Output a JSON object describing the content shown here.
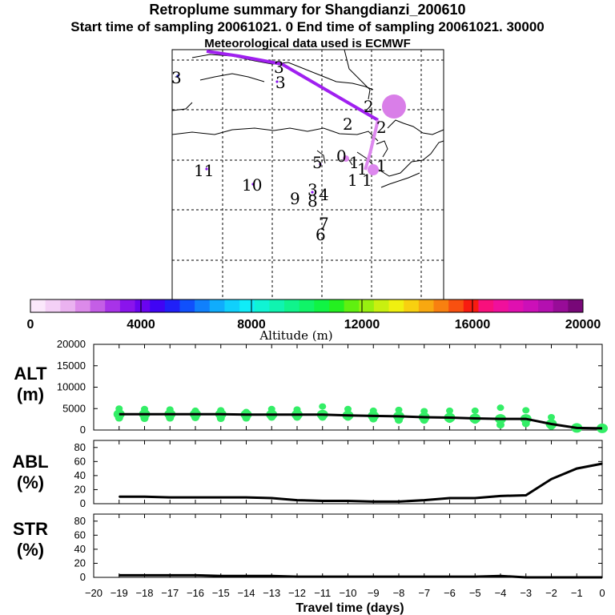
{
  "header": {
    "title": "Retroplume summary for Shangdianzi_200610",
    "subtitle": "Start time of sampling 20061021.     0     End time of sampling 20061021. 30000",
    "met_line": "Meteorological data used is ECMWF"
  },
  "colors": {
    "trajectory": "#a020f0",
    "trajectory_light": "#dd88ee",
    "blob": "#d97ee8",
    "alt_dots": "#33ee66",
    "line": "#000000"
  },
  "map": {
    "labels": [
      "3",
      "3",
      "3",
      "2",
      "2",
      "2",
      "1",
      "1",
      "1",
      "0",
      "5",
      "3",
      "4",
      "9",
      "8",
      "7",
      "6",
      "11",
      "10",
      "1",
      "1"
    ]
  },
  "colorbar": {
    "title": "Altitude (m)",
    "tick_labels": [
      "0",
      "4000",
      "8000",
      "12000",
      "16000",
      "20000"
    ],
    "colors": [
      "#fbe8fb",
      "#f4d0f6",
      "#eab2f0",
      "#dc8aea",
      "#c45ee6",
      "#a833e8",
      "#8a14ec",
      "#6a04f0",
      "#4004f4",
      "#2020f8",
      "#1050fc",
      "#1080fc",
      "#10acfc",
      "#10d0fc",
      "#10ecf8",
      "#10f4d4",
      "#10f4b0",
      "#10f48c",
      "#10f468",
      "#10f444",
      "#24f020",
      "#60f010",
      "#98f010",
      "#c8f010",
      "#f0f010",
      "#f8d010",
      "#f8a810",
      "#f88010",
      "#f85010",
      "#f81c10",
      "#f8107c",
      "#f0109c",
      "#e010b0",
      "#cc10b8",
      "#b410b0",
      "#980c98",
      "#780878"
    ]
  },
  "chart_data": [
    {
      "type": "scatter",
      "panel_label": [
        "ALT",
        "(m)"
      ],
      "ylim": [
        0,
        20000
      ],
      "yticks": [
        "0",
        "5000",
        "10000",
        "15000",
        "20000"
      ],
      "x": [
        -19,
        -18,
        -17,
        -16,
        -15,
        -14,
        -13,
        -12,
        -11,
        -10,
        -9,
        -8,
        -7,
        -6,
        -5,
        -4,
        -3,
        -2,
        -1,
        0
      ],
      "series": [
        {
          "name": "mean altitude",
          "values": [
            3700,
            3700,
            3700,
            3700,
            3700,
            3600,
            3600,
            3600,
            3600,
            3400,
            3300,
            3200,
            3000,
            2900,
            2700,
            2600,
            2600,
            1400,
            500,
            400
          ]
        },
        {
          "name": "plume upper",
          "values": [
            5000,
            4900,
            4800,
            4500,
            4600,
            4200,
            4900,
            4800,
            5500,
            4900,
            4500,
            4700,
            4400,
            4500,
            4500,
            5200,
            4600,
            3000,
            0,
            0
          ]
        },
        {
          "name": "plume lower",
          "values": [
            2800,
            2700,
            2800,
            2900,
            2700,
            2800,
            3000,
            3000,
            3000,
            3000,
            2600,
            2300,
            2300,
            2500,
            2300,
            1200,
            1500,
            900,
            0,
            0
          ]
        }
      ]
    },
    {
      "type": "line",
      "panel_label": [
        "ABL",
        "(%)"
      ],
      "ylim": [
        0,
        90
      ],
      "yticks": [
        "0",
        "20",
        "40",
        "60",
        "80"
      ],
      "x": [
        -19,
        -18,
        -17,
        -16,
        -15,
        -14,
        -13,
        -12,
        -11,
        -10,
        -9,
        -8,
        -7,
        -6,
        -5,
        -4,
        -3,
        -2,
        -1,
        0
      ],
      "values": [
        10,
        10,
        9,
        9,
        9,
        9,
        8,
        5,
        4,
        4,
        3,
        3,
        5,
        8,
        8,
        11,
        12,
        35,
        50,
        57
      ]
    },
    {
      "type": "line",
      "panel_label": [
        "STR",
        "(%)"
      ],
      "ylim": [
        0,
        90
      ],
      "yticks": [
        "0",
        "20",
        "40",
        "60",
        "80"
      ],
      "x": [
        -19,
        -18,
        -17,
        -16,
        -15,
        -14,
        -13,
        -12,
        -11,
        -10,
        -9,
        -8,
        -7,
        -6,
        -5,
        -4,
        -3,
        -2,
        -1,
        0
      ],
      "values": [
        3,
        3,
        3,
        3,
        2,
        2,
        2,
        1,
        1,
        1,
        1,
        1,
        1,
        1,
        1,
        2,
        0,
        0,
        0,
        0
      ]
    }
  ],
  "x_axis": {
    "title": "Travel time (days)",
    "tick_labels": [
      "−20",
      "−19",
      "−18",
      "−17",
      "−16",
      "−15",
      "−14",
      "−13",
      "−12",
      "−11",
      "−10",
      "−9",
      "−8",
      "−7",
      "−6",
      "−5",
      "−4",
      "−3",
      "−2",
      "−1",
      "0"
    ]
  }
}
